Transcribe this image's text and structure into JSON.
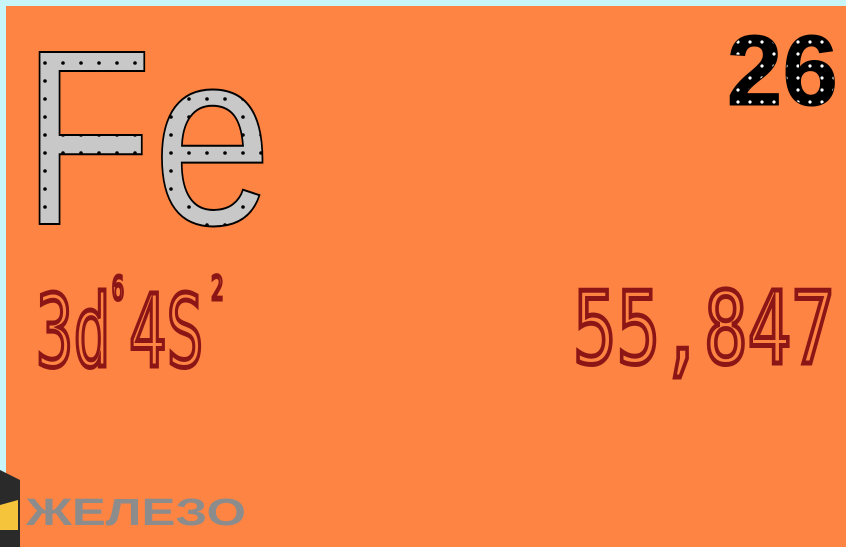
{
  "element": {
    "symbol": "Fe",
    "number": "26",
    "configuration": [
      {
        "base": "3d",
        "sup": "6"
      },
      {
        "base": "4S",
        "sup": "2"
      }
    ],
    "mass": "55,847",
    "name": "ЖЕЛЕЗО"
  }
}
